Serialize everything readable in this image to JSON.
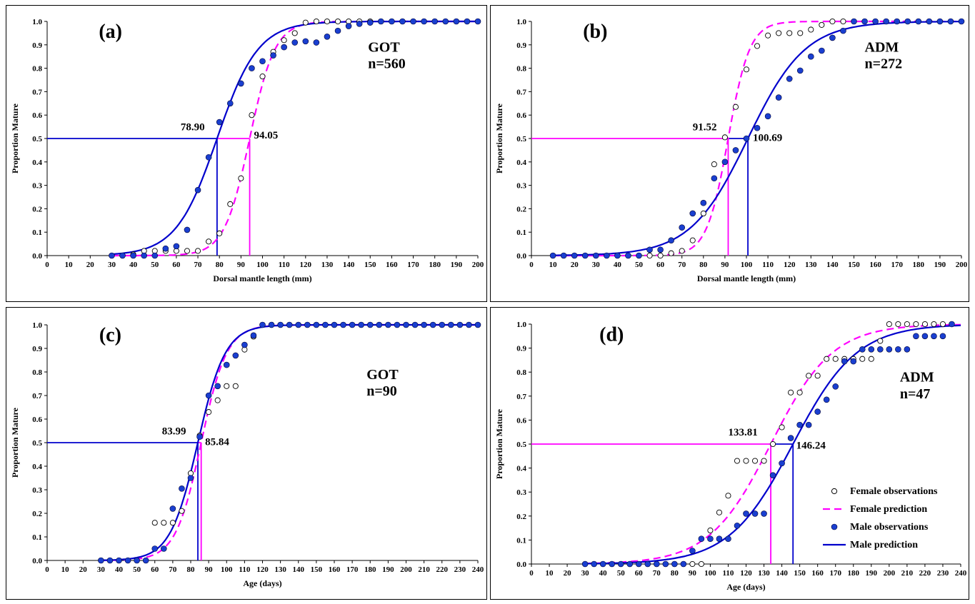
{
  "colors": {
    "female": "#ff00ff",
    "male": "#0000cc",
    "male_fill": "#1a3fd0"
  },
  "legend": [
    {
      "key": "fobs",
      "label": "Female observations",
      "kind": "open-circle"
    },
    {
      "key": "fpred",
      "label": "Female prediction",
      "kind": "dashed-line"
    },
    {
      "key": "mobs",
      "label": "Male observations",
      "kind": "filled-circle"
    },
    {
      "key": "mpred",
      "label": "Male prediction",
      "kind": "solid-line"
    }
  ],
  "chart_data": [
    {
      "id": "a",
      "letter": "(a)",
      "type": "scatter",
      "site": "GOT",
      "n": "n=560",
      "xlabel": "Dorsal mantle length (mm)",
      "ylabel": "Proportion Mature",
      "xlim": [
        0,
        200
      ],
      "xstep": 10,
      "ylim": [
        0,
        1
      ],
      "ystep": 0.1,
      "female_L50": 94.05,
      "female_L50_label": "94.05",
      "male_L50": 78.9,
      "male_L50_label": "78.90",
      "female_k": 0.17,
      "male_k": 0.105,
      "female_obs": [
        [
          30,
          0
        ],
        [
          35,
          0
        ],
        [
          40,
          0.005
        ],
        [
          45,
          0.02
        ],
        [
          50,
          0.02
        ],
        [
          55,
          0.02
        ],
        [
          60,
          0.02
        ],
        [
          65,
          0.02
        ],
        [
          70,
          0.02
        ],
        [
          75,
          0.06
        ],
        [
          80,
          0.095
        ],
        [
          85,
          0.22
        ],
        [
          90,
          0.33
        ],
        [
          95,
          0.6
        ],
        [
          100,
          0.765
        ],
        [
          105,
          0.87
        ],
        [
          110,
          0.92
        ],
        [
          115,
          0.95
        ],
        [
          120,
          0.995
        ],
        [
          125,
          1
        ],
        [
          130,
          1
        ],
        [
          135,
          1
        ],
        [
          140,
          1
        ],
        [
          145,
          1
        ],
        [
          150,
          1
        ],
        [
          155,
          1
        ],
        [
          160,
          1
        ],
        [
          165,
          1
        ],
        [
          170,
          1
        ],
        [
          175,
          1
        ],
        [
          180,
          1
        ],
        [
          185,
          1
        ],
        [
          190,
          1
        ],
        [
          195,
          1
        ],
        [
          200,
          1
        ]
      ],
      "male_obs": [
        [
          30,
          0
        ],
        [
          35,
          0
        ],
        [
          40,
          0
        ],
        [
          45,
          0
        ],
        [
          50,
          0
        ],
        [
          55,
          0.03
        ],
        [
          60,
          0.04
        ],
        [
          65,
          0.11
        ],
        [
          70,
          0.28
        ],
        [
          75,
          0.42
        ],
        [
          80,
          0.57
        ],
        [
          85,
          0.65
        ],
        [
          90,
          0.735
        ],
        [
          95,
          0.8
        ],
        [
          100,
          0.83
        ],
        [
          105,
          0.855
        ],
        [
          110,
          0.89
        ],
        [
          115,
          0.91
        ],
        [
          120,
          0.915
        ],
        [
          125,
          0.91
        ],
        [
          130,
          0.935
        ],
        [
          135,
          0.96
        ],
        [
          140,
          0.98
        ],
        [
          145,
          0.99
        ],
        [
          150,
          0.995
        ],
        [
          155,
          1
        ],
        [
          160,
          1
        ],
        [
          165,
          1
        ],
        [
          170,
          1
        ],
        [
          175,
          1
        ],
        [
          180,
          1
        ],
        [
          185,
          1
        ],
        [
          190,
          1
        ],
        [
          195,
          1
        ],
        [
          200,
          1
        ]
      ],
      "pred_range": [
        30,
        200
      ],
      "legend": false,
      "label_pos": {
        "letter": [
          24,
          0.93
        ],
        "site": [
          149,
          0.87
        ],
        "n": [
          149,
          0.8
        ],
        "male": [
          62,
          0.535
        ],
        "female": [
          96,
          0.5
        ]
      }
    },
    {
      "id": "b",
      "letter": "(b)",
      "type": "scatter",
      "site": "ADM",
      "n": "n=272",
      "xlabel": "Dorsal mantle length (mm)",
      "ylabel": "Proportion Mature",
      "xlim": [
        0,
        200
      ],
      "xstep": 10,
      "ylim": [
        0,
        1
      ],
      "ystep": 0.1,
      "female_L50": 91.52,
      "female_L50_label": "91.52",
      "male_L50": 100.69,
      "male_L50_label": "100.69",
      "female_k": 0.2,
      "male_k": 0.075,
      "female_obs": [
        [
          10,
          0
        ],
        [
          15,
          0
        ],
        [
          20,
          0
        ],
        [
          25,
          0
        ],
        [
          30,
          0
        ],
        [
          35,
          0
        ],
        [
          40,
          0
        ],
        [
          45,
          0
        ],
        [
          50,
          0
        ],
        [
          55,
          0
        ],
        [
          60,
          0
        ],
        [
          65,
          0.01
        ],
        [
          70,
          0.02
        ],
        [
          75,
          0.065
        ],
        [
          80,
          0.18
        ],
        [
          85,
          0.39
        ],
        [
          90,
          0.505
        ],
        [
          95,
          0.635
        ],
        [
          100,
          0.795
        ],
        [
          105,
          0.895
        ],
        [
          110,
          0.94
        ],
        [
          115,
          0.95
        ],
        [
          120,
          0.95
        ],
        [
          125,
          0.95
        ],
        [
          130,
          0.965
        ],
        [
          135,
          0.985
        ],
        [
          140,
          1
        ],
        [
          145,
          1
        ],
        [
          150,
          1
        ],
        [
          155,
          1
        ],
        [
          160,
          1
        ],
        [
          165,
          1
        ],
        [
          170,
          1
        ],
        [
          175,
          1
        ],
        [
          180,
          1
        ],
        [
          185,
          1
        ],
        [
          190,
          1
        ],
        [
          195,
          1
        ],
        [
          200,
          1
        ]
      ],
      "male_obs": [
        [
          10,
          0
        ],
        [
          15,
          0
        ],
        [
          20,
          0
        ],
        [
          25,
          0
        ],
        [
          30,
          0
        ],
        [
          35,
          0
        ],
        [
          40,
          0
        ],
        [
          45,
          0
        ],
        [
          50,
          0
        ],
        [
          55,
          0.025
        ],
        [
          60,
          0.025
        ],
        [
          65,
          0.065
        ],
        [
          70,
          0.12
        ],
        [
          75,
          0.18
        ],
        [
          80,
          0.225
        ],
        [
          85,
          0.33
        ],
        [
          90,
          0.4
        ],
        [
          95,
          0.45
        ],
        [
          100,
          0.5
        ],
        [
          105,
          0.545
        ],
        [
          110,
          0.595
        ],
        [
          115,
          0.675
        ],
        [
          120,
          0.755
        ],
        [
          125,
          0.79
        ],
        [
          130,
          0.85
        ],
        [
          135,
          0.875
        ],
        [
          140,
          0.93
        ],
        [
          145,
          0.96
        ],
        [
          150,
          1
        ],
        [
          155,
          1
        ],
        [
          160,
          1
        ],
        [
          165,
          1
        ],
        [
          170,
          1
        ],
        [
          175,
          1
        ],
        [
          180,
          1
        ],
        [
          185,
          1
        ],
        [
          190,
          1
        ],
        [
          195,
          1
        ],
        [
          200,
          1
        ]
      ],
      "pred_range": [
        10,
        200
      ],
      "legend": false,
      "label_pos": {
        "letter": [
          24,
          0.93
        ],
        "site": [
          155,
          0.87
        ],
        "n": [
          155,
          0.8
        ],
        "female": [
          75,
          0.535
        ],
        "male": [
          103,
          0.49
        ]
      }
    },
    {
      "id": "c",
      "letter": "(c)",
      "type": "scatter",
      "site": "GOT",
      "n": "n=90",
      "xlabel": "Age (days)",
      "ylabel": "Proportion Mature",
      "xlim": [
        0,
        240
      ],
      "xstep": 10,
      "ylim": [
        0,
        1
      ],
      "ystep": 0.1,
      "female_L50": 85.84,
      "female_L50_label": "85.84",
      "male_L50": 83.99,
      "male_L50_label": "83.99",
      "female_k": 0.14,
      "male_k": 0.13,
      "female_obs": [
        [
          30,
          0
        ],
        [
          35,
          0
        ],
        [
          40,
          0
        ],
        [
          45,
          0
        ],
        [
          50,
          0
        ],
        [
          55,
          0
        ],
        [
          60,
          0.16
        ],
        [
          65,
          0.16
        ],
        [
          70,
          0.16
        ],
        [
          75,
          0.21
        ],
        [
          80,
          0.37
        ],
        [
          85,
          0.53
        ],
        [
          90,
          0.63
        ],
        [
          95,
          0.68
        ],
        [
          100,
          0.74
        ],
        [
          105,
          0.74
        ],
        [
          110,
          0.895
        ],
        [
          115,
          0.95
        ],
        [
          120,
          1
        ],
        [
          125,
          1
        ],
        [
          130,
          1
        ],
        [
          135,
          1
        ],
        [
          140,
          1
        ],
        [
          145,
          1
        ],
        [
          150,
          1
        ],
        [
          155,
          1
        ],
        [
          160,
          1
        ],
        [
          165,
          1
        ],
        [
          170,
          1
        ],
        [
          175,
          1
        ],
        [
          180,
          1
        ],
        [
          185,
          1
        ],
        [
          190,
          1
        ],
        [
          195,
          1
        ],
        [
          200,
          1
        ],
        [
          205,
          1
        ],
        [
          210,
          1
        ],
        [
          215,
          1
        ],
        [
          220,
          1
        ],
        [
          225,
          1
        ],
        [
          230,
          1
        ],
        [
          235,
          1
        ],
        [
          240,
          1
        ]
      ],
      "male_obs": [
        [
          30,
          0
        ],
        [
          35,
          0
        ],
        [
          40,
          0
        ],
        [
          45,
          0
        ],
        [
          50,
          0
        ],
        [
          55,
          0
        ],
        [
          60,
          0.05
        ],
        [
          65,
          0.05
        ],
        [
          70,
          0.22
        ],
        [
          75,
          0.305
        ],
        [
          80,
          0.35
        ],
        [
          85,
          0.525
        ],
        [
          90,
          0.7
        ],
        [
          95,
          0.74
        ],
        [
          100,
          0.83
        ],
        [
          105,
          0.87
        ],
        [
          110,
          0.915
        ],
        [
          115,
          0.955
        ],
        [
          120,
          1
        ],
        [
          125,
          1
        ],
        [
          130,
          1
        ],
        [
          135,
          1
        ],
        [
          140,
          1
        ],
        [
          145,
          1
        ],
        [
          150,
          1
        ],
        [
          155,
          1
        ],
        [
          160,
          1
        ],
        [
          165,
          1
        ],
        [
          170,
          1
        ],
        [
          175,
          1
        ],
        [
          180,
          1
        ],
        [
          185,
          1
        ],
        [
          190,
          1
        ],
        [
          195,
          1
        ],
        [
          200,
          1
        ],
        [
          205,
          1
        ],
        [
          210,
          1
        ],
        [
          215,
          1
        ],
        [
          220,
          1
        ],
        [
          225,
          1
        ],
        [
          230,
          1
        ],
        [
          235,
          1
        ],
        [
          240,
          1
        ]
      ],
      "pred_range": [
        30,
        240
      ],
      "legend": false,
      "label_pos": {
        "letter": [
          29,
          0.93
        ],
        "site": [
          178,
          0.77
        ],
        "n": [
          178,
          0.7
        ],
        "male": [
          64,
          0.535
        ],
        "female": [
          88,
          0.49
        ]
      }
    },
    {
      "id": "d",
      "letter": "(d)",
      "type": "scatter",
      "site": "ADM",
      "n": "n=47",
      "xlabel": "Age (days)",
      "ylabel": "Proportion Mature",
      "xlim": [
        0,
        240
      ],
      "xstep": 10,
      "ylim": [
        0,
        1
      ],
      "ystep": 0.1,
      "female_L50": 133.81,
      "female_L50_label": "133.81",
      "male_L50": 146.24,
      "male_L50_label": "146.24",
      "female_k": 0.058,
      "male_k": 0.056,
      "female_obs": [
        [
          30,
          0
        ],
        [
          35,
          0
        ],
        [
          40,
          0
        ],
        [
          45,
          0
        ],
        [
          50,
          0
        ],
        [
          55,
          0
        ],
        [
          60,
          0
        ],
        [
          65,
          0
        ],
        [
          70,
          0
        ],
        [
          75,
          0
        ],
        [
          80,
          0
        ],
        [
          85,
          0
        ],
        [
          90,
          0
        ],
        [
          95,
          0
        ],
        [
          100,
          0.14
        ],
        [
          105,
          0.215
        ],
        [
          110,
          0.285
        ],
        [
          115,
          0.43
        ],
        [
          120,
          0.43
        ],
        [
          125,
          0.43
        ],
        [
          130,
          0.43
        ],
        [
          135,
          0.5
        ],
        [
          140,
          0.57
        ],
        [
          145,
          0.715
        ],
        [
          150,
          0.715
        ],
        [
          155,
          0.785
        ],
        [
          160,
          0.785
        ],
        [
          165,
          0.855
        ],
        [
          170,
          0.855
        ],
        [
          175,
          0.855
        ],
        [
          180,
          0.855
        ],
        [
          185,
          0.855
        ],
        [
          190,
          0.855
        ],
        [
          195,
          0.93
        ],
        [
          200,
          1
        ],
        [
          205,
          1
        ],
        [
          210,
          1
        ],
        [
          215,
          1
        ],
        [
          220,
          1
        ],
        [
          225,
          1
        ],
        [
          230,
          1
        ],
        [
          235,
          1
        ]
      ],
      "male_obs": [
        [
          30,
          0
        ],
        [
          35,
          0
        ],
        [
          40,
          0
        ],
        [
          45,
          0
        ],
        [
          50,
          0
        ],
        [
          55,
          0
        ],
        [
          60,
          0
        ],
        [
          65,
          0
        ],
        [
          70,
          0
        ],
        [
          75,
          0
        ],
        [
          80,
          0
        ],
        [
          85,
          0
        ],
        [
          90,
          0.055
        ],
        [
          95,
          0.105
        ],
        [
          100,
          0.105
        ],
        [
          105,
          0.105
        ],
        [
          110,
          0.105
        ],
        [
          115,
          0.16
        ],
        [
          120,
          0.21
        ],
        [
          125,
          0.21
        ],
        [
          130,
          0.21
        ],
        [
          135,
          0.37
        ],
        [
          140,
          0.42
        ],
        [
          145,
          0.525
        ],
        [
          150,
          0.58
        ],
        [
          155,
          0.58
        ],
        [
          160,
          0.635
        ],
        [
          165,
          0.685
        ],
        [
          170,
          0.74
        ],
        [
          175,
          0.845
        ],
        [
          180,
          0.845
        ],
        [
          185,
          0.895
        ],
        [
          190,
          0.895
        ],
        [
          195,
          0.895
        ],
        [
          200,
          0.895
        ],
        [
          205,
          0.895
        ],
        [
          210,
          0.895
        ],
        [
          215,
          0.95
        ],
        [
          220,
          0.95
        ],
        [
          225,
          0.95
        ],
        [
          230,
          0.95
        ],
        [
          235,
          1
        ]
      ],
      "pred_range": [
        30,
        240
      ],
      "legend": true,
      "label_pos": {
        "letter": [
          38,
          0.93
        ],
        "site": [
          206,
          0.76
        ],
        "n": [
          206,
          0.69
        ],
        "female": [
          110,
          0.535
        ],
        "male": [
          148,
          0.48
        ]
      }
    }
  ]
}
